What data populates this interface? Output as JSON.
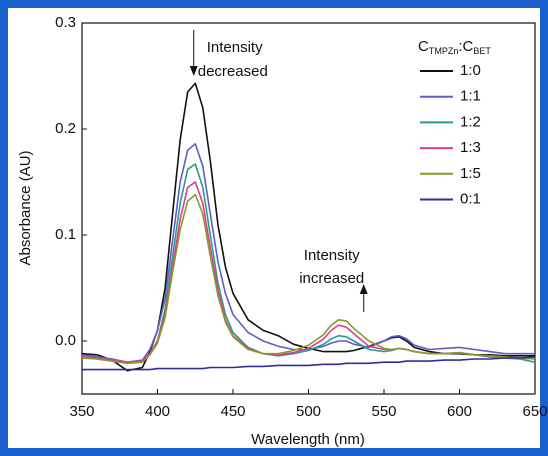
{
  "chart_data": {
    "type": "line",
    "xlabel": "Wavelength (nm)",
    "ylabel": "Absorbance (AU)",
    "legend_title": [
      "C",
      "TMPZn",
      ":C",
      "BET"
    ],
    "legend_position": "upper right",
    "annotations": [
      {
        "lines": [
          "Intensity",
          "decreased"
        ],
        "x": 424,
        "arrow": "down"
      },
      {
        "lines": [
          "Intensity",
          "increased"
        ],
        "x": 522,
        "arrow": "up"
      }
    ],
    "xlim": [
      350,
      650
    ],
    "xticks": [
      350,
      400,
      450,
      500,
      550,
      600,
      650
    ],
    "ylim": [
      -0.05,
      0.3
    ],
    "yticks": [
      {
        "value": 0,
        "label": "0.0"
      },
      0.1,
      0.2,
      0.3
    ],
    "x": [
      350,
      360,
      370,
      380,
      390,
      395,
      400,
      405,
      410,
      415,
      420,
      425,
      430,
      435,
      440,
      445,
      450,
      460,
      470,
      480,
      490,
      500,
      510,
      515,
      520,
      525,
      530,
      540,
      550,
      555,
      560,
      565,
      570,
      580,
      590,
      600,
      610,
      620,
      630,
      640,
      650
    ],
    "series": [
      {
        "name": "1:0",
        "color": "#111111",
        "values": [
          -0.012,
          -0.013,
          -0.018,
          -0.028,
          -0.025,
          -0.01,
          0.01,
          0.05,
          0.12,
          0.19,
          0.235,
          0.243,
          0.22,
          0.17,
          0.11,
          0.07,
          0.045,
          0.02,
          0.01,
          0.005,
          -0.003,
          -0.007,
          -0.01,
          -0.01,
          -0.01,
          -0.01,
          -0.009,
          -0.005,
          0.0,
          0.003,
          0.004,
          0.0,
          -0.006,
          -0.01,
          -0.012,
          -0.012,
          -0.013,
          -0.013,
          -0.014,
          -0.014,
          -0.014
        ]
      },
      {
        "name": "1:1",
        "color": "#5b5fc7",
        "values": [
          -0.013,
          -0.015,
          -0.017,
          -0.02,
          -0.018,
          -0.008,
          0.01,
          0.04,
          0.095,
          0.15,
          0.18,
          0.186,
          0.165,
          0.12,
          0.075,
          0.045,
          0.025,
          0.008,
          0.0,
          -0.005,
          -0.008,
          -0.008,
          -0.005,
          -0.002,
          0.0,
          0.0,
          -0.003,
          -0.006,
          0.0,
          0.004,
          0.005,
          0.002,
          -0.004,
          -0.008,
          -0.007,
          -0.006,
          -0.008,
          -0.01,
          -0.012,
          -0.012,
          -0.012
        ]
      },
      {
        "name": "1:2",
        "color": "#2a9d8a",
        "values": [
          -0.015,
          -0.017,
          -0.019,
          -0.02,
          -0.019,
          -0.012,
          0.0,
          0.03,
          0.08,
          0.13,
          0.162,
          0.167,
          0.145,
          0.1,
          0.055,
          0.025,
          0.008,
          -0.006,
          -0.012,
          -0.014,
          -0.012,
          -0.009,
          -0.003,
          0.002,
          0.005,
          0.004,
          0.0,
          -0.008,
          -0.01,
          -0.009,
          -0.007,
          -0.008,
          -0.01,
          -0.012,
          -0.012,
          -0.011,
          -0.013,
          -0.015,
          -0.016,
          -0.017,
          -0.02
        ]
      },
      {
        "name": "1:3",
        "color": "#e0399a",
        "values": [
          -0.015,
          -0.016,
          -0.018,
          -0.02,
          -0.019,
          -0.012,
          0.0,
          0.025,
          0.07,
          0.115,
          0.145,
          0.15,
          0.13,
          0.088,
          0.048,
          0.02,
          0.005,
          -0.007,
          -0.012,
          -0.013,
          -0.011,
          -0.007,
          0.002,
          0.01,
          0.015,
          0.013,
          0.007,
          -0.005,
          -0.008,
          -0.008,
          -0.007,
          -0.008,
          -0.01,
          -0.012,
          -0.012,
          -0.011,
          -0.013,
          -0.014,
          -0.015,
          -0.016,
          -0.017
        ]
      },
      {
        "name": "1:5",
        "color": "#8c9a22",
        "values": [
          -0.016,
          -0.017,
          -0.019,
          -0.021,
          -0.02,
          -0.013,
          -0.002,
          0.022,
          0.065,
          0.105,
          0.132,
          0.138,
          0.12,
          0.08,
          0.043,
          0.018,
          0.004,
          -0.008,
          -0.012,
          -0.012,
          -0.009,
          -0.004,
          0.006,
          0.015,
          0.02,
          0.019,
          0.012,
          0.0,
          -0.007,
          -0.008,
          -0.007,
          -0.008,
          -0.01,
          -0.012,
          -0.012,
          -0.011,
          -0.013,
          -0.014,
          -0.015,
          -0.016,
          -0.017
        ]
      },
      {
        "name": "0:1",
        "color": "#2e2e9a",
        "values": [
          -0.027,
          -0.027,
          -0.027,
          -0.027,
          -0.027,
          -0.027,
          -0.026,
          -0.026,
          -0.026,
          -0.026,
          -0.026,
          -0.026,
          -0.026,
          -0.025,
          -0.025,
          -0.025,
          -0.025,
          -0.024,
          -0.024,
          -0.023,
          -0.023,
          -0.023,
          -0.022,
          -0.022,
          -0.022,
          -0.021,
          -0.021,
          -0.021,
          -0.02,
          -0.02,
          -0.02,
          -0.019,
          -0.019,
          -0.019,
          -0.018,
          -0.018,
          -0.017,
          -0.017,
          -0.016,
          -0.016,
          -0.015
        ]
      }
    ]
  }
}
